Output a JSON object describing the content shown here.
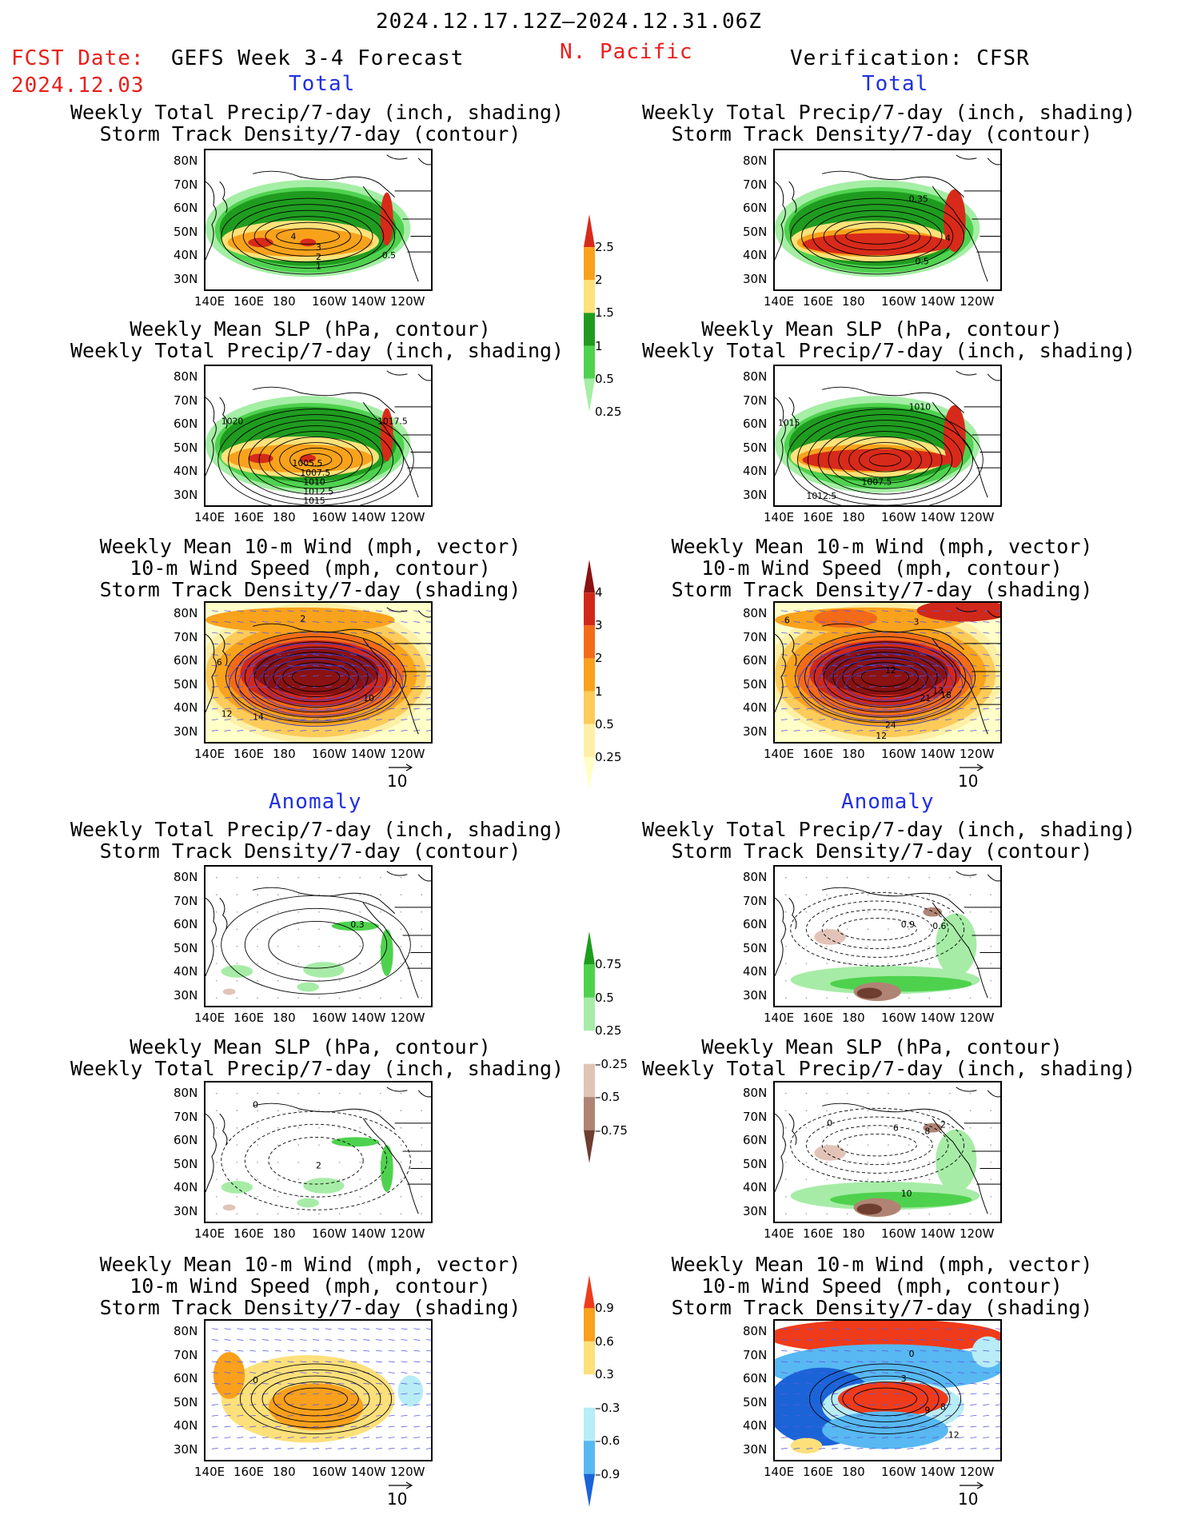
{
  "header": {
    "date_range": "2024.12.17.12Z–2024.12.31.06Z",
    "fcst_label": "FCST Date:",
    "fcst_date": "2024.12.03",
    "model": "GEFS Week 3-4 Forecast",
    "region": "N. Pacific",
    "verification": "Verification: CFSR"
  },
  "sections": {
    "total_left": "Total",
    "total_right": "Total",
    "anomaly_left": "Anomaly",
    "anomaly_right": "Anomaly"
  },
  "panel_titles": {
    "precip_track": [
      "Weekly Total Precip/7-day (inch, shading)",
      "Storm Track Density/7-day (contour)"
    ],
    "slp_precip": [
      "Weekly Mean SLP (hPa, contour)",
      "Weekly Total Precip/7-day (inch, shading)"
    ],
    "wind_track": [
      "Weekly Mean 10-m Wind (mph, vector)",
      "10-m Wind Speed (mph, contour)",
      "Storm Track Density/7-day (shading)"
    ]
  },
  "axes": {
    "lat_ticks": [
      "80N",
      "70N",
      "60N",
      "50N",
      "40N",
      "30N"
    ],
    "lon_ticks": [
      "140E",
      "160E",
      "180",
      "160W",
      "140W",
      "120W"
    ]
  },
  "vector_ref": "10",
  "colorbars": {
    "precip_total": {
      "labels": [
        "2.5",
        "2",
        "1.5",
        "1",
        "0.5",
        "0.25"
      ],
      "colors": [
        "#d82a1a",
        "#f8a21c",
        "#fde27a",
        "#1f9c1f",
        "#4fd24f",
        "#a5eea5"
      ]
    },
    "track_total": {
      "labels": [
        "4",
        "3",
        "2",
        "1",
        "0.5",
        "0.25"
      ],
      "colors": [
        "#8a1212",
        "#d0281a",
        "#f36a18",
        "#f9a21c",
        "#fccb5a",
        "#fdf0a6",
        "#ffffc8"
      ]
    },
    "precip_anom": {
      "labels": [
        "0.75",
        "0.5",
        "0.25",
        "–0.25",
        "–0.5",
        "–0.75"
      ],
      "colors": [
        "#1c9e1c",
        "#4ed24e",
        "#a6eca6",
        "#ffffff",
        "#e2c3b7",
        "#b08474",
        "#6e3e30"
      ]
    },
    "track_anom": {
      "labels": [
        "0.9",
        "0.6",
        "0.3",
        "–0.3",
        "–0.6",
        "–0.9"
      ],
      "colors": [
        "#ef3b1a",
        "#f9a01c",
        "#fde07a",
        "#ffffff",
        "#b8ecf6",
        "#58b8f2",
        "#1a64d8"
      ]
    }
  },
  "contour_labels": {
    "p1_left": [
      "4",
      "3",
      "2",
      "1",
      "0.5"
    ],
    "p1_right": [
      "0.35",
      "4",
      "0.5"
    ],
    "p2_left": [
      "1020",
      "1017.5",
      "1005.5",
      "1007.5",
      "1010",
      "1012.5",
      "1015"
    ],
    "p2_right": [
      "1010",
      "1015",
      "1007.5",
      "1012.5"
    ],
    "p3_left": [
      "2",
      "6",
      "10",
      "12",
      "14"
    ],
    "p3_right": [
      "6",
      "3",
      "12",
      "13",
      "21",
      "18",
      "24",
      "12"
    ],
    "p4_left": [
      "0.3"
    ],
    "p4_right": [
      "0.9",
      "0.6"
    ],
    "p5_left": [
      "0",
      "2"
    ],
    "p5_right": [
      "0",
      "6",
      "8",
      "2",
      "10"
    ],
    "p6_left": [
      "0"
    ],
    "p6_right": [
      "0",
      "3",
      "8",
      "9",
      "12"
    ]
  }
}
